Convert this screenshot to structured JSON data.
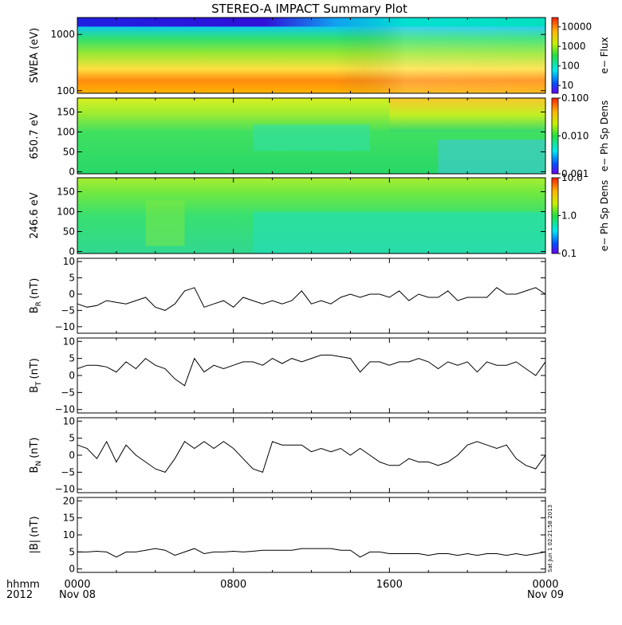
{
  "title": "STEREO-A IMPACT Summary Plot",
  "timestamp_vertical": "Sat Jun 1 02:21:58 2013",
  "x_axis": {
    "prefix_top": "hhmm",
    "prefix_bottom": "2012",
    "ticks": [
      {
        "time": 0,
        "label": "0000",
        "date": "Nov 08"
      },
      {
        "time": 8,
        "label": "0800",
        "date": ""
      },
      {
        "time": 16,
        "label": "1600",
        "date": ""
      },
      {
        "time": 24,
        "label": "0000",
        "date": "Nov 09"
      }
    ],
    "range_hours": [
      0,
      24
    ]
  },
  "chart_data": [
    {
      "type": "heatmap",
      "ylabel": "SWEA (eV)",
      "yscale": "log",
      "ylim": [
        90,
        2000
      ],
      "yticks": [
        {
          "v": 100,
          "label": "100"
        },
        {
          "v": 1000,
          "label": "1000"
        }
      ],
      "colorbar": {
        "label": "e− Flux",
        "scale": "log",
        "range": [
          4,
          30000
        ],
        "ticks": [
          {
            "v": 10,
            "label": "10"
          },
          {
            "v": 100,
            "label": "100"
          },
          {
            "v": 1000,
            "label": "1000"
          },
          {
            "v": 10000,
            "label": "10000"
          }
        ]
      }
    },
    {
      "type": "heatmap",
      "ylabel": "650.7 eV",
      "ylim": [
        -5,
        185
      ],
      "yticks": [
        {
          "v": 0,
          "label": "0"
        },
        {
          "v": 50,
          "label": "50"
        },
        {
          "v": 100,
          "label": "100"
        },
        {
          "v": 150,
          "label": "150"
        }
      ],
      "colorbar": {
        "label": "e− Ph Sp Dens",
        "scale": "log",
        "range": [
          0.001,
          0.1
        ],
        "ticks": [
          {
            "v": 0.001,
            "label": "0.001"
          },
          {
            "v": 0.01,
            "label": "0.010"
          },
          {
            "v": 0.1,
            "label": "0.100"
          }
        ]
      }
    },
    {
      "type": "heatmap",
      "ylabel": "246.6 eV",
      "ylim": [
        -5,
        185
      ],
      "yticks": [
        {
          "v": 0,
          "label": "0"
        },
        {
          "v": 50,
          "label": "50"
        },
        {
          "v": 100,
          "label": "100"
        },
        {
          "v": 150,
          "label": "150"
        }
      ],
      "colorbar": {
        "label": "e− Ph Sp Dens",
        "scale": "log",
        "range": [
          0.1,
          10
        ],
        "ticks": [
          {
            "v": 0.1,
            "label": "0.1"
          },
          {
            "v": 1,
            "label": "1.0"
          },
          {
            "v": 10,
            "label": "10.0"
          }
        ]
      }
    },
    {
      "type": "line",
      "ylabel": "B",
      "ylabel_sub": "R",
      "ylabel_unit": "(nT)",
      "ylim": [
        -12,
        11
      ],
      "yticks": [
        {
          "v": -10,
          "label": "−10"
        },
        {
          "v": -5,
          "label": "−5"
        },
        {
          "v": 0,
          "label": "0"
        },
        {
          "v": 5,
          "label": "5"
        },
        {
          "v": 10,
          "label": "10"
        }
      ],
      "series": [
        {
          "x": [
            0,
            0.5,
            1,
            1.5,
            2,
            2.5,
            3,
            3.5,
            4,
            4.5,
            5,
            5.5,
            6,
            6.5,
            7,
            7.5,
            8,
            8.5,
            9,
            9.5,
            10,
            10.5,
            11,
            11.5,
            12,
            12.5,
            13,
            13.5,
            14,
            14.5,
            15,
            15.5,
            16,
            16.5,
            17,
            17.5,
            18,
            18.5,
            19,
            19.5,
            20,
            20.5,
            21,
            21.5,
            22,
            22.5,
            23,
            23.5,
            24
          ],
          "y": [
            -3,
            -4,
            -3.5,
            -2,
            -2.5,
            -3,
            -2,
            -1,
            -4,
            -5,
            -3,
            1,
            2,
            -4,
            -3,
            -2,
            -4,
            -1,
            -2,
            -3,
            -2,
            -3,
            -2,
            1,
            -3,
            -2,
            -3,
            -1,
            0,
            -1,
            0,
            0,
            -1,
            1,
            -2,
            0,
            -1,
            -1,
            1,
            -2,
            -1,
            -1,
            -1,
            2,
            0,
            0,
            1,
            2,
            0
          ]
        }
      ]
    },
    {
      "type": "line",
      "ylabel": "B",
      "ylabel_sub": "T",
      "ylabel_unit": "(nT)",
      "ylim": [
        -11,
        11
      ],
      "yticks": [
        {
          "v": -10,
          "label": "−10"
        },
        {
          "v": -5,
          "label": "−5"
        },
        {
          "v": 0,
          "label": "0"
        },
        {
          "v": 5,
          "label": "5"
        },
        {
          "v": 10,
          "label": "10"
        }
      ],
      "series": [
        {
          "x": [
            0,
            0.5,
            1,
            1.5,
            2,
            2.5,
            3,
            3.5,
            4,
            4.5,
            5,
            5.5,
            6,
            6.5,
            7,
            7.5,
            8,
            8.5,
            9,
            9.5,
            10,
            10.5,
            11,
            11.5,
            12,
            12.5,
            13,
            13.5,
            14,
            14.5,
            15,
            15.5,
            16,
            16.5,
            17,
            17.5,
            18,
            18.5,
            19,
            19.5,
            20,
            20.5,
            21,
            21.5,
            22,
            22.5,
            23,
            23.5,
            24
          ],
          "y": [
            2,
            3,
            3,
            2.5,
            1,
            4,
            2,
            5,
            3,
            2,
            -1,
            -3,
            5,
            1,
            3,
            2,
            3,
            4,
            4,
            3,
            5,
            3.5,
            5,
            4,
            5,
            6,
            6,
            5.5,
            5,
            1,
            4,
            4,
            3,
            4,
            4,
            5,
            4,
            2,
            4,
            3,
            4,
            1,
            4,
            3,
            3,
            4,
            2,
            0,
            4
          ]
        }
      ]
    },
    {
      "type": "line",
      "ylabel": "B",
      "ylabel_sub": "N",
      "ylabel_unit": "(nT)",
      "ylim": [
        -11,
        11
      ],
      "yticks": [
        {
          "v": -10,
          "label": "−10"
        },
        {
          "v": -5,
          "label": "−5"
        },
        {
          "v": 0,
          "label": "0"
        },
        {
          "v": 5,
          "label": "5"
        },
        {
          "v": 10,
          "label": "10"
        }
      ],
      "series": [
        {
          "x": [
            0,
            0.5,
            1,
            1.5,
            2,
            2.5,
            3,
            3.5,
            4,
            4.5,
            5,
            5.5,
            6,
            6.5,
            7,
            7.5,
            8,
            8.5,
            9,
            9.5,
            10,
            10.5,
            11,
            11.5,
            12,
            12.5,
            13,
            13.5,
            14,
            14.5,
            15,
            15.5,
            16,
            16.5,
            17,
            17.5,
            18,
            18.5,
            19,
            19.5,
            20,
            20.5,
            21,
            21.5,
            22,
            22.5,
            23,
            23.5,
            24
          ],
          "y": [
            3,
            2,
            -1,
            4,
            -2,
            3,
            0,
            -2,
            -4,
            -5,
            -1,
            4,
            2,
            4,
            2,
            4,
            2,
            -1,
            -4,
            -5,
            4,
            3,
            3,
            3,
            1,
            2,
            1,
            2,
            0,
            2,
            0,
            -2,
            -3,
            -3,
            -1,
            -2,
            -2,
            -3,
            -2,
            0,
            3,
            4,
            3,
            2,
            3,
            -1,
            -3,
            -4,
            0
          ]
        }
      ]
    },
    {
      "type": "line",
      "ylabel": "|B|",
      "ylabel_unit": "(nT)",
      "ylim": [
        -1,
        21
      ],
      "yticks": [
        {
          "v": 0,
          "label": "0"
        },
        {
          "v": 5,
          "label": "5"
        },
        {
          "v": 10,
          "label": "10"
        },
        {
          "v": 15,
          "label": "15"
        },
        {
          "v": 20,
          "label": "20"
        }
      ],
      "series": [
        {
          "x": [
            0,
            0.5,
            1,
            1.5,
            2,
            2.5,
            3,
            3.5,
            4,
            4.5,
            5,
            5.5,
            6,
            6.5,
            7,
            7.5,
            8,
            8.5,
            9,
            9.5,
            10,
            10.5,
            11,
            11.5,
            12,
            12.5,
            13,
            13.5,
            14,
            14.5,
            15,
            15.5,
            16,
            16.5,
            17,
            17.5,
            18,
            18.5,
            19,
            19.5,
            20,
            20.5,
            21,
            21.5,
            22,
            22.5,
            23,
            23.5,
            24
          ],
          "y": [
            5,
            5,
            5.2,
            5,
            3.5,
            5,
            5,
            5.5,
            6,
            5.5,
            4,
            5,
            6,
            4.5,
            5,
            5,
            5.2,
            5,
            5.2,
            5.5,
            5.5,
            5.5,
            5.5,
            6,
            6,
            6,
            6,
            5.5,
            5.5,
            3.5,
            5,
            5,
            4.5,
            4.5,
            4.5,
            4.5,
            4,
            4.5,
            4.5,
            4,
            4.5,
            4,
            4.5,
            4.5,
            4,
            4.5,
            4,
            4.5,
            5
          ]
        }
      ]
    }
  ]
}
